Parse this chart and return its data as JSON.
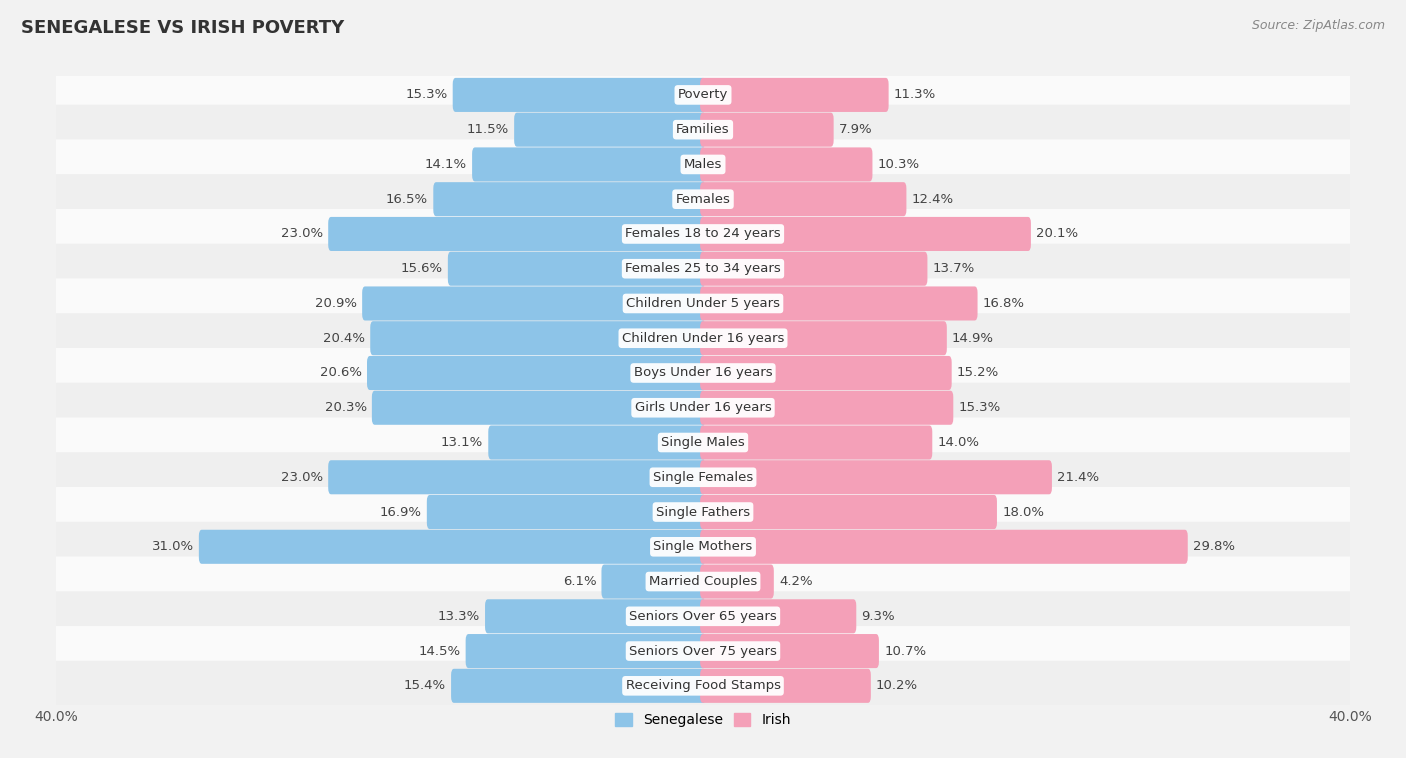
{
  "title": "SENEGALESE VS IRISH POVERTY",
  "source": "Source: ZipAtlas.com",
  "categories": [
    "Poverty",
    "Families",
    "Males",
    "Females",
    "Females 18 to 24 years",
    "Females 25 to 34 years",
    "Children Under 5 years",
    "Children Under 16 years",
    "Boys Under 16 years",
    "Girls Under 16 years",
    "Single Males",
    "Single Females",
    "Single Fathers",
    "Single Mothers",
    "Married Couples",
    "Seniors Over 65 years",
    "Seniors Over 75 years",
    "Receiving Food Stamps"
  ],
  "senegalese": [
    15.3,
    11.5,
    14.1,
    16.5,
    23.0,
    15.6,
    20.9,
    20.4,
    20.6,
    20.3,
    13.1,
    23.0,
    16.9,
    31.0,
    6.1,
    13.3,
    14.5,
    15.4
  ],
  "irish": [
    11.3,
    7.9,
    10.3,
    12.4,
    20.1,
    13.7,
    16.8,
    14.9,
    15.2,
    15.3,
    14.0,
    21.4,
    18.0,
    29.8,
    4.2,
    9.3,
    10.7,
    10.2
  ],
  "senegalese_color": "#8DC4E8",
  "irish_color": "#F4A0B8",
  "row_color_odd": "#EFEFEF",
  "row_color_even": "#FAFAFA",
  "axis_limit": 40.0,
  "bar_height": 0.62,
  "title_fontsize": 13,
  "label_fontsize": 9.5,
  "tick_fontsize": 10,
  "source_fontsize": 9
}
